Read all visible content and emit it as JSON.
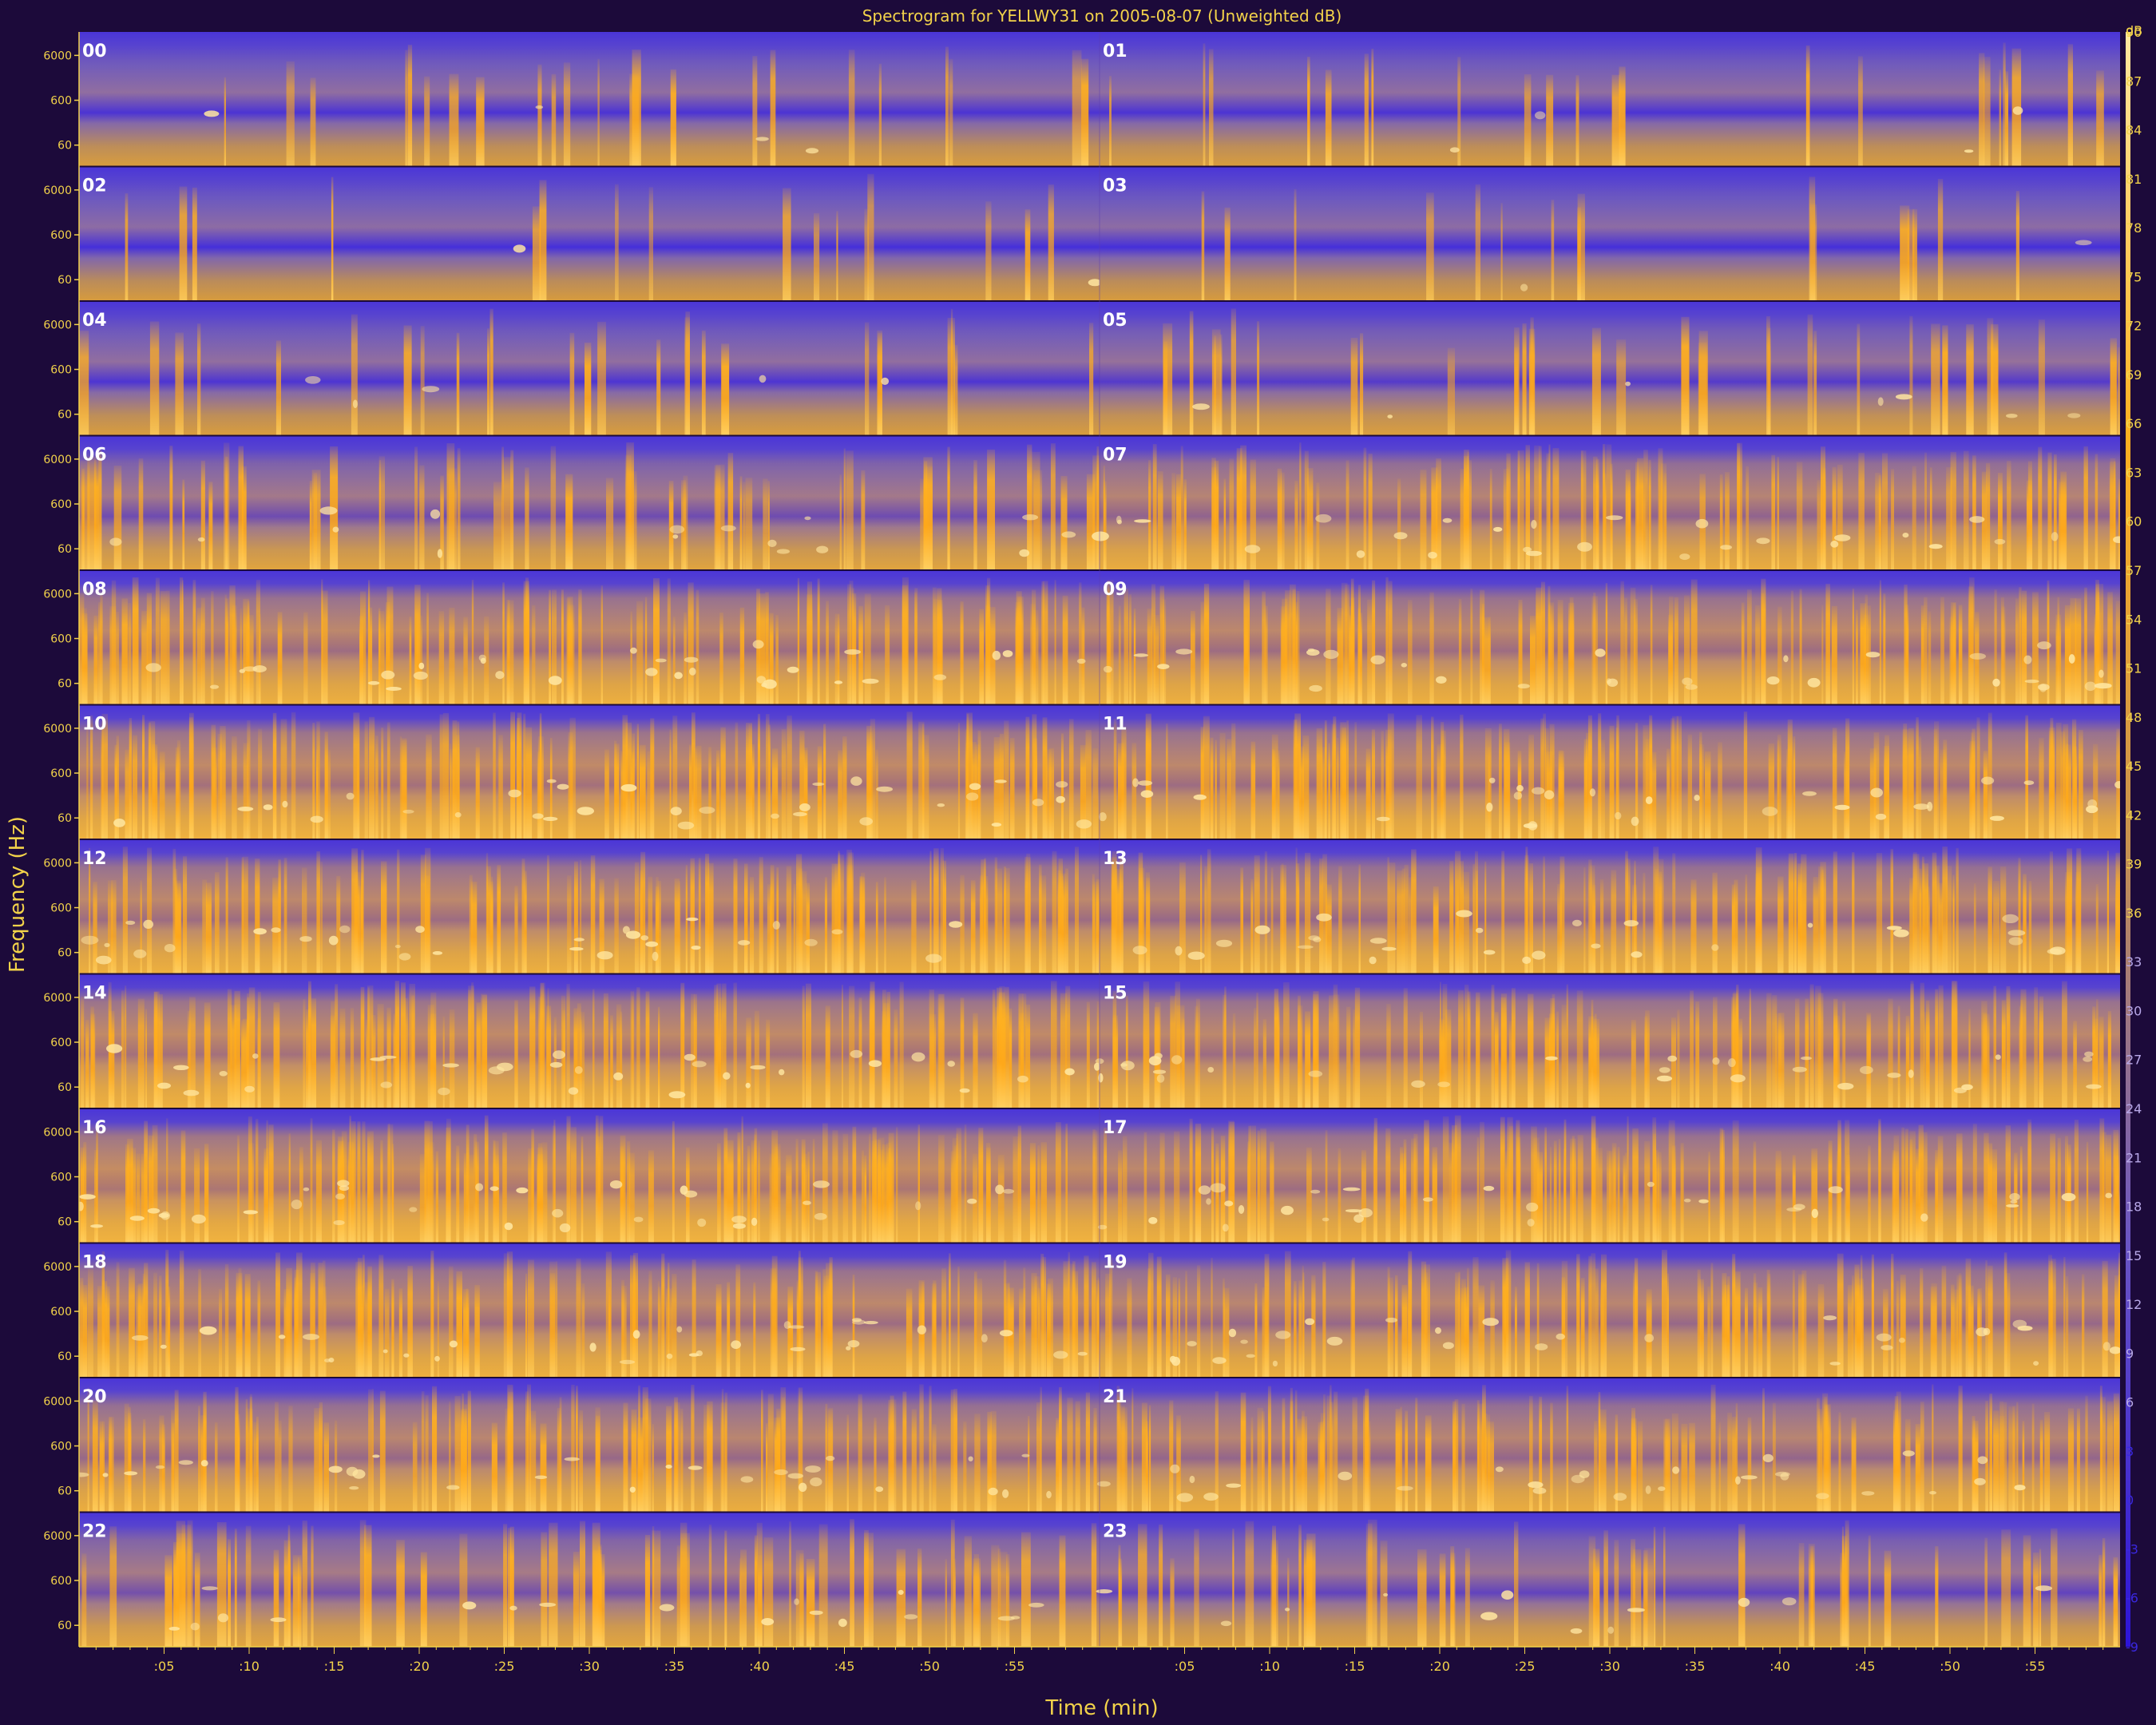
{
  "chart_data": {
    "type": "heatmap",
    "title": "Spectrogram for YELLWY31 on 2005-08-07 (Unweighted dB)",
    "xlabel": "Time (min)",
    "ylabel": "Frequency (Hz)",
    "x_ticks": [
      ":05",
      ":10",
      ":15",
      ":20",
      ":25",
      ":30",
      ":35",
      ":40",
      ":45",
      ":50",
      ":55"
    ],
    "y_ticks": [
      "6000",
      "600",
      "60"
    ],
    "y_scale": "log",
    "colorbar": {
      "unit": "dB",
      "range": [
        -9,
        90
      ],
      "ticks": [
        90,
        87,
        84,
        81,
        78,
        75,
        72,
        69,
        66,
        63,
        60,
        57,
        54,
        51,
        48,
        45,
        42,
        39,
        36,
        33,
        30,
        27,
        24,
        21,
        18,
        15,
        12,
        9,
        6,
        3,
        0,
        -3,
        -6,
        -9
      ],
      "colors": [
        "#2c14d8",
        "#6a55c4",
        "#c8924e",
        "#ffb020",
        "#ffe8a0"
      ]
    },
    "hours": [
      "00",
      "01",
      "02",
      "03",
      "04",
      "05",
      "06",
      "07",
      "08",
      "09",
      "10",
      "11",
      "12",
      "13",
      "14",
      "15",
      "16",
      "17",
      "18",
      "19",
      "20",
      "21",
      "22",
      "23"
    ],
    "activity": [
      0.1,
      0.1,
      0.05,
      0.05,
      0.12,
      0.18,
      0.4,
      0.7,
      0.8,
      0.8,
      0.85,
      0.8,
      0.8,
      0.75,
      0.85,
      0.8,
      0.92,
      0.8,
      0.8,
      0.75,
      0.75,
      0.72,
      0.45,
      0.3
    ]
  }
}
